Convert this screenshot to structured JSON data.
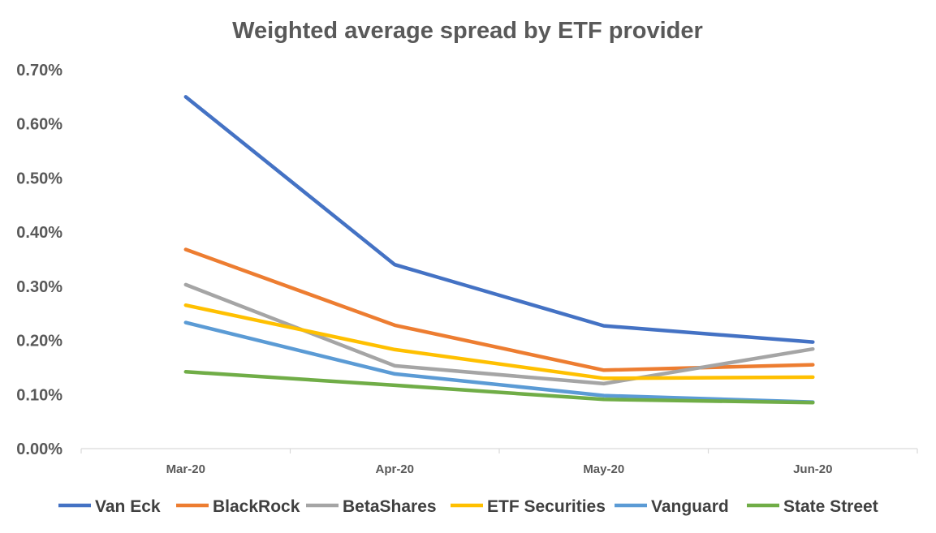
{
  "chart_data": {
    "type": "line",
    "title": "Weighted average spread by ETF provider",
    "xlabel": "",
    "ylabel": "",
    "categories": [
      "Mar-20",
      "Apr-20",
      "May-20",
      "Jun-20"
    ],
    "ylim": [
      0,
      0.7
    ],
    "yticks": [
      0,
      0.1,
      0.2,
      0.3,
      0.4,
      0.5,
      0.6,
      0.7
    ],
    "ytick_labels": [
      "0.00%",
      "0.10%",
      "0.20%",
      "0.30%",
      "0.40%",
      "0.50%",
      "0.60%",
      "0.70%"
    ],
    "grid": false,
    "legend_position": "bottom",
    "series": [
      {
        "name": "Van Eck",
        "color": "#4472C4",
        "values": [
          0.65,
          0.34,
          0.227,
          0.197
        ]
      },
      {
        "name": "BlackRock",
        "color": "#ED7D31",
        "values": [
          0.368,
          0.228,
          0.145,
          0.155
        ]
      },
      {
        "name": "BetaShares",
        "color": "#A5A5A5",
        "values": [
          0.303,
          0.153,
          0.12,
          0.184
        ]
      },
      {
        "name": "ETF Securities",
        "color": "#FFC000",
        "values": [
          0.265,
          0.183,
          0.13,
          0.132
        ]
      },
      {
        "name": "Vanguard",
        "color": "#5B9BD5",
        "values": [
          0.233,
          0.138,
          0.098,
          0.086
        ]
      },
      {
        "name": "State Street",
        "color": "#70AD47",
        "values": [
          0.142,
          0.117,
          0.091,
          0.085
        ]
      }
    ]
  }
}
